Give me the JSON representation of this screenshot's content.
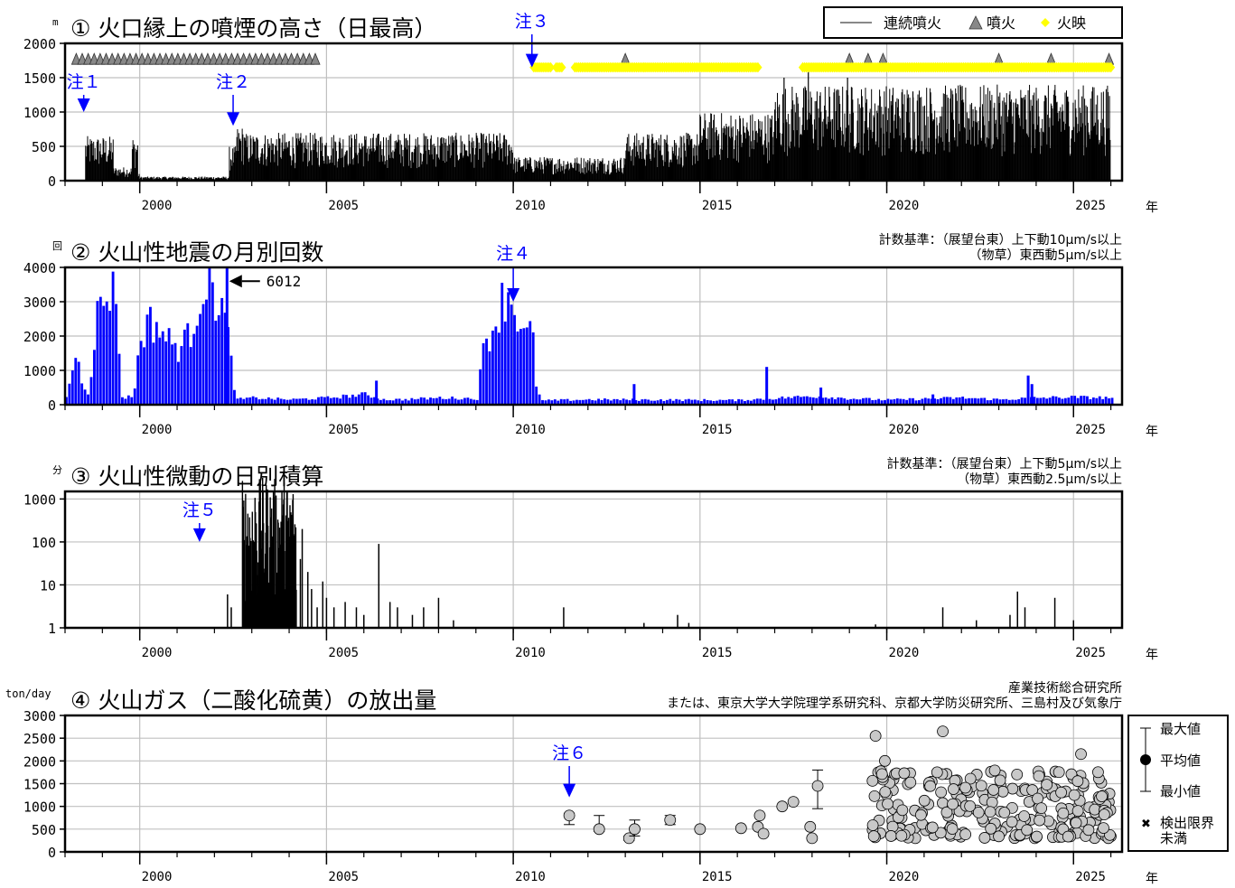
{
  "colors": {
    "black": "#000000",
    "blue": "#0000ff",
    "note_blue": "#0000ff",
    "yellow": "#ffff00",
    "grid": "#c0c0c0",
    "gas_marker": "#c8c8c8"
  },
  "chart_data": [
    {
      "id": "panel1",
      "type": "bar",
      "title": "① 火口縁上の噴煙の高さ（日最高）",
      "ylabel": "m",
      "xlabel": "年",
      "xlim": [
        1998.0,
        2026.3
      ],
      "xticks": [
        2000,
        2005,
        2010,
        2015,
        2020,
        2025
      ],
      "ylim": [
        0,
        2000
      ],
      "yticks": [
        0,
        500,
        1000,
        1500,
        2000
      ],
      "grid": true,
      "legend": {
        "position": "top-right",
        "items": [
          {
            "label": "連続噴火",
            "symbol": "gray-line"
          },
          {
            "label": "噴火",
            "symbol": "eruption-icon"
          },
          {
            "label": "火映",
            "symbol": "yellow-diamond"
          }
        ]
      },
      "segments": [
        {
          "from": 1998.0,
          "to": 1998.55,
          "max": 0
        },
        {
          "from": 1998.55,
          "to": 1999.3,
          "max": 650
        },
        {
          "from": 1999.3,
          "to": 1999.8,
          "max": 200
        },
        {
          "from": 1999.8,
          "to": 1999.95,
          "max": 650
        },
        {
          "from": 1999.95,
          "to": 2000.0,
          "max": 100
        },
        {
          "from": 2000.0,
          "to": 2002.4,
          "max": 60
        },
        {
          "from": 2002.4,
          "to": 2002.6,
          "max": 500
        },
        {
          "from": 2002.6,
          "to": 2002.8,
          "max": 800
        },
        {
          "from": 2002.8,
          "to": 2010.0,
          "max": 700
        },
        {
          "from": 2010.0,
          "to": 2013.0,
          "max": 350
        },
        {
          "from": 2013.0,
          "to": 2015.0,
          "max": 700
        },
        {
          "from": 2015.0,
          "to": 2017.0,
          "max": 1000
        },
        {
          "from": 2017.0,
          "to": 2026.0,
          "max": 1400
        }
      ],
      "peaks": [
        {
          "x": 2017.25,
          "y": 1500
        },
        {
          "x": 2017.9,
          "y": 1600
        },
        {
          "x": 2018.95,
          "y": 1500
        },
        {
          "x": 2020.7,
          "y": 1300
        },
        {
          "x": 2025.5,
          "y": 1300
        }
      ],
      "continuous_eruption": [
        [
          1998.3,
          2004.8
        ]
      ],
      "eruptions": [
        2013.0,
        2019.0,
        2019.5,
        2019.9,
        2023.0,
        2024.4,
        2025.95
      ],
      "incandescence": [
        [
          2010.55,
          2011.0
        ],
        [
          2011.15,
          2011.3
        ],
        [
          2011.65,
          2013.5
        ],
        [
          2013.5,
          2016.55
        ],
        [
          2017.75,
          2026.0
        ]
      ],
      "annotations": [
        {
          "label": "注１",
          "x": 1998.5,
          "arrow_to": 1000
        },
        {
          "label": "注２",
          "x": 2002.5,
          "arrow_to": 800
        },
        {
          "label": "注３",
          "x": 2010.5,
          "arrow_to": 1650
        }
      ]
    },
    {
      "id": "panel2",
      "type": "bar",
      "title": "② 火山性地震の月別回数",
      "ylabel": "回",
      "xlabel": "年",
      "xlim": [
        1998.0,
        2026.3
      ],
      "xticks": [
        2000,
        2005,
        2010,
        2015,
        2020,
        2025
      ],
      "ylim": [
        0,
        4000
      ],
      "yticks": [
        0,
        1000,
        2000,
        3000,
        4000
      ],
      "grid": true,
      "criteria": [
        "計数基準：（展望台東）上下動10μm/s以上",
        "（物草）東西動5μm/s以上"
      ],
      "monthly_profile": [
        [
          1998.0,
          200
        ],
        [
          1998.25,
          1500
        ],
        [
          1998.4,
          800
        ],
        [
          1998.6,
          300
        ],
        [
          1998.8,
          2500
        ],
        [
          1999.0,
          3000
        ],
        [
          1999.15,
          3400
        ],
        [
          1999.35,
          3100
        ],
        [
          1999.5,
          200
        ],
        [
          1999.8,
          250
        ],
        [
          2000.0,
          2000
        ],
        [
          2000.2,
          2400
        ],
        [
          2000.45,
          2300
        ],
        [
          2000.7,
          1900
        ],
        [
          2001.0,
          1650
        ],
        [
          2001.3,
          2000
        ],
        [
          2001.5,
          2800
        ],
        [
          2001.65,
          3600
        ],
        [
          2001.85,
          3300
        ],
        [
          2002.1,
          3100
        ],
        [
          2002.25,
          2500
        ],
        [
          2002.4,
          1400
        ],
        [
          2002.55,
          150
        ],
        [
          2003.0,
          200
        ],
        [
          2004.0,
          150
        ],
        [
          2005.0,
          200
        ],
        [
          2006.0,
          300
        ],
        [
          2006.5,
          150
        ],
        [
          2007.0,
          150
        ],
        [
          2008.0,
          200
        ],
        [
          2009.0,
          180
        ],
        [
          2009.2,
          1800
        ],
        [
          2009.45,
          2300
        ],
        [
          2009.7,
          3100
        ],
        [
          2009.85,
          3300
        ],
        [
          2010.0,
          2800
        ],
        [
          2010.15,
          2400
        ],
        [
          2010.3,
          1800
        ],
        [
          2010.45,
          2400
        ],
        [
          2010.6,
          400
        ],
        [
          2010.75,
          120
        ],
        [
          2012.0,
          150
        ],
        [
          2014.0,
          140
        ],
        [
          2016.0,
          130
        ],
        [
          2018.0,
          250
        ],
        [
          2019.0,
          180
        ],
        [
          2020.0,
          140
        ],
        [
          2022.0,
          200
        ],
        [
          2023.0,
          150
        ],
        [
          2024.0,
          200
        ],
        [
          2025.0,
          220
        ],
        [
          2026.0,
          200
        ]
      ],
      "spikes": [
        {
          "x": 2002.3,
          "y": 6012
        },
        {
          "x": 2006.3,
          "y": 700
        },
        {
          "x": 2013.2,
          "y": 600
        },
        {
          "x": 2016.75,
          "y": 1100
        },
        {
          "x": 2018.2,
          "y": 500
        },
        {
          "x": 2021.2,
          "y": 300
        },
        {
          "x": 2023.75,
          "y": 850
        },
        {
          "x": 2023.85,
          "y": 600
        }
      ],
      "annotations": [
        {
          "label": "6012",
          "x": 2002.3
        },
        {
          "label": "注４",
          "x": 2010.0,
          "arrow_to": 3000
        }
      ]
    },
    {
      "id": "panel3",
      "type": "bar",
      "title": "③ 火山性微動の日別積算",
      "ylabel": "分",
      "xlabel": "年",
      "log_scale": true,
      "xlim": [
        1998.0,
        2026.3
      ],
      "xticks": [
        2000,
        2005,
        2010,
        2015,
        2020,
        2025
      ],
      "ylim": [
        1,
        1500
      ],
      "yticks": [
        1,
        10,
        100,
        1000
      ],
      "grid": true,
      "criteria": [
        "計数基準：（展望台東）上下動5μm/s以上",
        "（物草）東西動2.5μm/s以上"
      ],
      "dense_range": [
        2002.75,
        2004.2
      ],
      "events": [
        {
          "x": 2002.35,
          "y": 6
        },
        {
          "x": 2002.45,
          "y": 3
        },
        {
          "x": 2004.3,
          "y": 40
        },
        {
          "x": 2004.35,
          "y": 200
        },
        {
          "x": 2004.5,
          "y": 20
        },
        {
          "x": 2004.6,
          "y": 8
        },
        {
          "x": 2004.75,
          "y": 3
        },
        {
          "x": 2004.9,
          "y": 12
        },
        {
          "x": 2005.0,
          "y": 5
        },
        {
          "x": 2005.2,
          "y": 3
        },
        {
          "x": 2005.5,
          "y": 4
        },
        {
          "x": 2005.8,
          "y": 3
        },
        {
          "x": 2006.0,
          "y": 2
        },
        {
          "x": 2006.4,
          "y": 90
        },
        {
          "x": 2006.7,
          "y": 4
        },
        {
          "x": 2006.9,
          "y": 3
        },
        {
          "x": 2007.3,
          "y": 2
        },
        {
          "x": 2007.6,
          "y": 3
        },
        {
          "x": 2008.0,
          "y": 5
        },
        {
          "x": 2008.4,
          "y": 1.5
        },
        {
          "x": 2011.35,
          "y": 3
        },
        {
          "x": 2013.5,
          "y": 1.3
        },
        {
          "x": 2014.4,
          "y": 2
        },
        {
          "x": 2014.7,
          "y": 1.3
        },
        {
          "x": 2019.7,
          "y": 1.2
        },
        {
          "x": 2021.5,
          "y": 3
        },
        {
          "x": 2022.4,
          "y": 1.5
        },
        {
          "x": 2023.3,
          "y": 2
        },
        {
          "x": 2023.5,
          "y": 7
        },
        {
          "x": 2023.7,
          "y": 3
        },
        {
          "x": 2024.5,
          "y": 5
        },
        {
          "x": 2025.0,
          "y": 1.5
        }
      ],
      "annotations": [
        {
          "label": "注５",
          "x": 2001.6,
          "arrow_to": 100
        }
      ]
    },
    {
      "id": "panel4",
      "type": "scatter",
      "title": "④ 火山ガス（二酸化硫黄）の放出量",
      "ylabel": "ton/day",
      "xlabel": "年",
      "xlim": [
        1998.0,
        2026.3
      ],
      "xticks": [
        2000,
        2005,
        2010,
        2015,
        2020,
        2025
      ],
      "ylim": [
        0,
        3000
      ],
      "yticks": [
        0,
        500,
        1000,
        1500,
        2000,
        2500,
        3000
      ],
      "grid": true,
      "source": [
        "産業技術総合研究所",
        "または、東京大学大学院理学系研究科、京都大学防災研究所、三島村及び気象庁"
      ],
      "legend": {
        "position": "right",
        "items": [
          {
            "label": "最大値",
            "symbol": "max-bar"
          },
          {
            "label": "平均値",
            "symbol": "black-dot"
          },
          {
            "label": "最小値",
            "symbol": "min-bar"
          },
          {
            "label": "検出限界未満",
            "symbol": "cross"
          }
        ]
      },
      "points_with_range": [
        {
          "x": 2011.5,
          "y": 800,
          "min": 600,
          "max": 850
        },
        {
          "x": 2012.3,
          "y": 500,
          "min": 450,
          "max": 800
        },
        {
          "x": 2013.1,
          "y": 300,
          "min": 250,
          "max": 350
        },
        {
          "x": 2013.25,
          "y": 500,
          "min": 350,
          "max": 700
        },
        {
          "x": 2014.2,
          "y": 700,
          "min": 600,
          "max": 800
        },
        {
          "x": 2015.0,
          "y": 500
        },
        {
          "x": 2016.1,
          "y": 520
        },
        {
          "x": 2016.6,
          "y": 800
        },
        {
          "x": 2016.55,
          "y": 550
        },
        {
          "x": 2016.7,
          "y": 400
        },
        {
          "x": 2017.2,
          "y": 1000
        },
        {
          "x": 2017.5,
          "y": 1100
        },
        {
          "x": 2017.95,
          "y": 550
        },
        {
          "x": 2018.0,
          "y": 300
        },
        {
          "x": 2018.15,
          "y": 1450,
          "min": 950,
          "max": 1800
        },
        {
          "x": 2019.7,
          "y": 2550
        },
        {
          "x": 2019.95,
          "y": 2000
        },
        {
          "x": 2021.5,
          "y": 2650
        },
        {
          "x": 2025.2,
          "y": 2150
        }
      ],
      "dense_cloud": {
        "from": 2019.6,
        "to": 2026.0,
        "low": 300,
        "high": 1800,
        "count": 240
      },
      "annotations": [
        {
          "label": "注６",
          "x": 2011.5,
          "arrow_to": 1200
        }
      ]
    }
  ]
}
